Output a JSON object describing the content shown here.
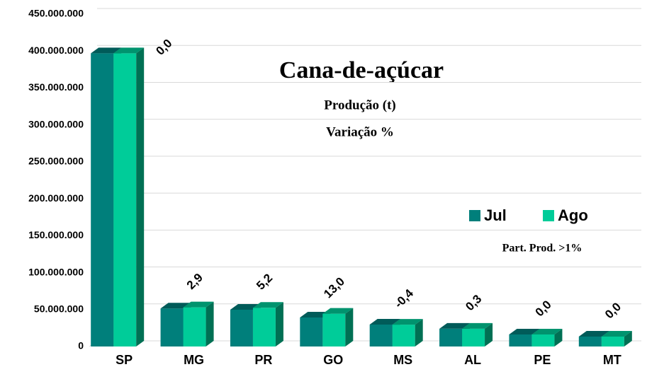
{
  "chart_data": {
    "type": "bar3d",
    "title": "Cana-de-açúcar",
    "subtitle": [
      "Produção (t)",
      "Variação %"
    ],
    "note": "Part. Prod. >1%",
    "categories": [
      "SP",
      "MG",
      "PR",
      "GO",
      "MS",
      "AL",
      "PE",
      "MT"
    ],
    "series": [
      {
        "name": "Jul",
        "color": "#007f7b",
        "values": [
          397000000,
          51500000,
          49800000,
          39300000,
          29700000,
          24000000,
          16300000,
          13400000
        ]
      },
      {
        "name": "Ago",
        "color": "#00cc99",
        "values": [
          397000000,
          53000000,
          52400000,
          44400000,
          29600000,
          24100000,
          16300000,
          13400000
        ]
      }
    ],
    "annotations": [
      "0,0",
      "2,9",
      "5,2",
      "13,0",
      "-0,4",
      "0,3",
      "0,0",
      "0,0"
    ],
    "ylim": [
      0,
      450000000
    ],
    "yticks": [
      0,
      {
        "value": 50000000,
        "label": "50.000.000"
      },
      {
        "value": 100000000,
        "label": "100.000.000"
      },
      {
        "value": 150000000,
        "label": "150.000.000"
      },
      {
        "value": 200000000,
        "label": "200.000.000"
      },
      {
        "value": 250000000,
        "label": "250.000.000"
      },
      {
        "value": 300000000,
        "label": "300.000.000"
      },
      {
        "value": 350000000,
        "label": "350.000.000"
      },
      {
        "value": 400000000,
        "label": "400.000.000"
      },
      {
        "value": 450000000,
        "label": "450.000.000"
      }
    ],
    "grid": true
  }
}
